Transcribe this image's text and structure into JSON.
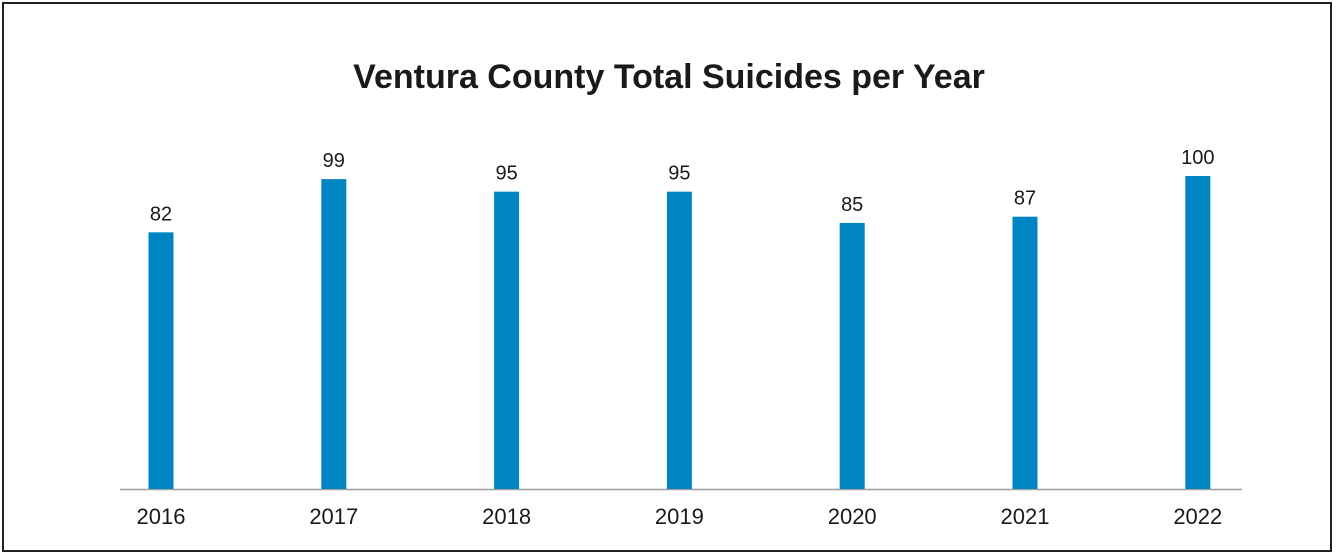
{
  "chart_data": {
    "type": "bar",
    "title": "Ventura County Total Suicides per Year",
    "categories": [
      "2016",
      "2017",
      "2018",
      "2019",
      "2020",
      "2021",
      "2022"
    ],
    "values": [
      82,
      99,
      95,
      95,
      85,
      87,
      100
    ],
    "ylim": [
      0,
      100
    ],
    "grid": false,
    "legend": "none",
    "bar_color": "#0085C3",
    "axis_color": "#9E9E9E"
  }
}
